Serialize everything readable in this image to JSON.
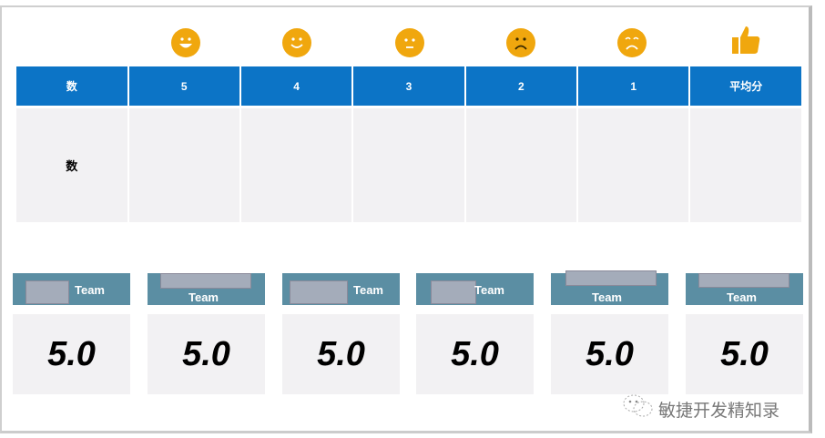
{
  "table": {
    "headers": [
      "数",
      "5",
      "4",
      "3",
      "2",
      "1",
      "平均分"
    ],
    "rows": [
      [
        "数",
        "",
        "",
        "",
        "",
        "",
        ""
      ]
    ],
    "header_icons": [
      "grin-face-icon",
      "smile-face-icon",
      "neutral-face-icon",
      "frown-face-icon",
      "sad-face-icon",
      "thumbs-up-icon"
    ]
  },
  "teams": [
    {
      "label": "Team",
      "score": "5.0"
    },
    {
      "label": "Team",
      "score": "5.0"
    },
    {
      "label": "Team",
      "score": "5.0"
    },
    {
      "label": "Team",
      "score": "5.0"
    },
    {
      "label": "Team",
      "score": "5.0"
    },
    {
      "label": "Team",
      "score": "5.0"
    }
  ],
  "watermark": "敏捷开发精知录",
  "colors": {
    "header": "#0c74c6",
    "icon": "#f0a70e",
    "team_header": "#5b8ea3",
    "cell": "#f2f1f3"
  }
}
